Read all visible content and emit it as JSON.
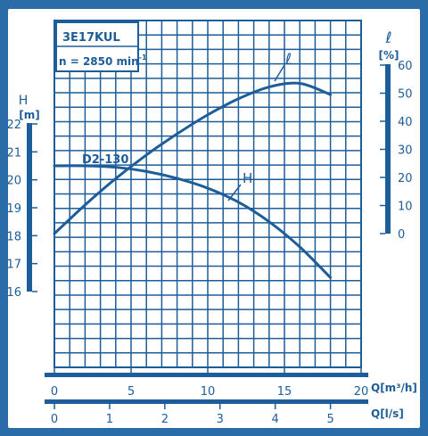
{
  "chart_data": {
    "type": "line",
    "info_box": {
      "model": "3E17KUL",
      "speed": "n = 2850 min",
      "speed_exp": "-1"
    },
    "x_axis_flow_m3h": {
      "label": "Q[m³/h]",
      "range": [
        0,
        20
      ],
      "ticks": [
        0,
        5,
        10,
        15,
        20
      ],
      "tick_labels": [
        "0",
        "5",
        "10",
        "15",
        "20"
      ]
    },
    "x_axis_flow_ls": {
      "label": "Q[l/s]",
      "ticks": [
        0,
        1,
        2,
        3,
        4,
        5
      ],
      "tick_labels": [
        "0",
        "1",
        "2",
        "3",
        "4",
        "5"
      ]
    },
    "y_axis_head": {
      "label": "H",
      "unit": "[m]",
      "range": [
        16,
        22
      ],
      "ticks": [
        16,
        17,
        18,
        19,
        20,
        21,
        22
      ],
      "tick_labels": [
        "16",
        "17",
        "18",
        "19",
        "20",
        "21",
        "22"
      ]
    },
    "y_axis_efficiency": {
      "label": "ℓ",
      "unit": "[%]",
      "range": [
        0,
        60
      ],
      "ticks": [
        0,
        10,
        20,
        30,
        40,
        50,
        60
      ],
      "tick_labels": [
        "0",
        "10",
        "20",
        "30",
        "40",
        "50",
        "60"
      ]
    },
    "series": [
      {
        "name": "H",
        "axis": "head",
        "x": [
          0,
          2,
          4,
          6,
          8,
          10,
          12,
          14,
          16,
          18
        ],
        "y": [
          20.5,
          20.5,
          20.45,
          20.3,
          20.05,
          19.7,
          19.2,
          18.5,
          17.6,
          16.5
        ]
      },
      {
        "name": "ℓ",
        "axis": "efficiency",
        "x": [
          0,
          2,
          4,
          6,
          8,
          10,
          12,
          14,
          16,
          18
        ],
        "y": [
          0,
          10.2,
          19.6,
          28,
          35.5,
          42.3,
          48,
          52.2,
          53.5,
          49.5
        ]
      }
    ],
    "annotations": {
      "impeller": "D2-130",
      "curve_h_label": "H",
      "curve_eff_label": "ℓ"
    },
    "grid": true
  }
}
